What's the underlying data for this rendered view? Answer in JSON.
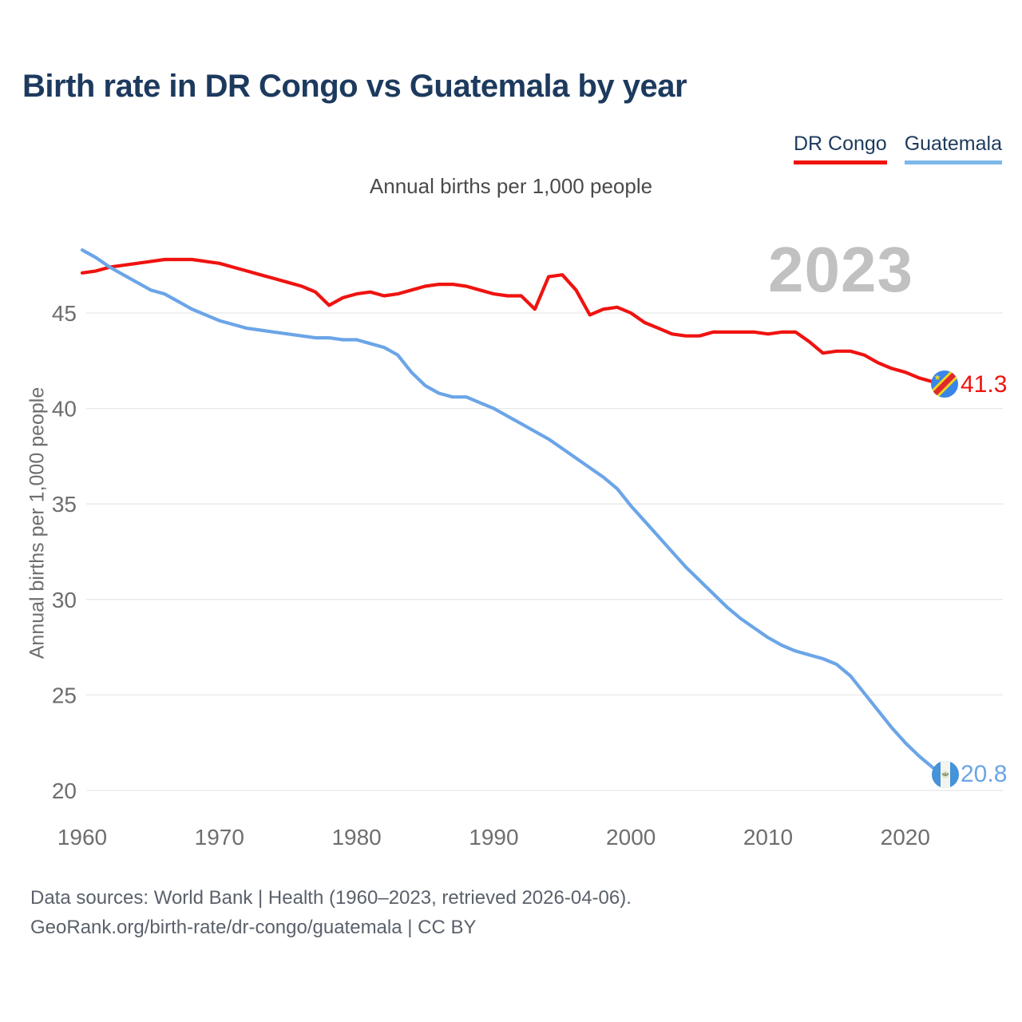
{
  "header": {
    "title": "Birth rate in DR Congo vs Guatemala by year",
    "subtitle": "Annual births per 1,000 people"
  },
  "legend": [
    {
      "label": "DR Congo",
      "color": "#ef1310"
    },
    {
      "label": "Guatemala",
      "color": "#7db8e8"
    }
  ],
  "watermark": "2023",
  "end_labels": {
    "dr_congo": "41.3",
    "guatemala": "20.8"
  },
  "footer": {
    "line1": "Data sources: World Bank | Health (1960–2023, retrieved 2026-04-06).",
    "line2": "GeoRank.org/birth-rate/dr-congo/guatemala | CC BY"
  },
  "chart_data": {
    "type": "line",
    "title": "Birth rate in DR Congo vs Guatemala by year",
    "xlabel": "",
    "ylabel": "Annual births per 1,000 people",
    "x_start": 1960,
    "x_end": 2023,
    "xticks": [
      1960,
      1970,
      1980,
      1990,
      2000,
      2010,
      2020
    ],
    "yticks": [
      45,
      40,
      35,
      30,
      25,
      20
    ],
    "ylim": [
      18.5,
      49.0
    ],
    "grid": "horizontal",
    "legend_position": "top-right",
    "colors": {
      "grid": "#e7e7e7",
      "tick_text": "#6e6e6e"
    },
    "series": [
      {
        "name": "DR Congo",
        "color": "#ef1310",
        "end_value": 41.3,
        "values": [
          47.1,
          47.2,
          47.4,
          47.5,
          47.6,
          47.7,
          47.8,
          47.8,
          47.8,
          47.7,
          47.6,
          47.4,
          47.2,
          47.0,
          46.8,
          46.6,
          46.4,
          46.1,
          45.4,
          45.8,
          46.0,
          46.1,
          45.9,
          46.0,
          46.2,
          46.4,
          46.5,
          46.5,
          46.4,
          46.2,
          46.0,
          45.9,
          45.9,
          45.2,
          46.9,
          47.0,
          46.2,
          44.9,
          45.2,
          45.3,
          45.0,
          44.5,
          44.2,
          43.9,
          43.8,
          43.8,
          44.0,
          44.0,
          44.0,
          44.0,
          43.9,
          44.0,
          44.0,
          43.5,
          42.9,
          43.0,
          43.0,
          42.8,
          42.4,
          42.1,
          41.9,
          41.6,
          41.4,
          41.3
        ]
      },
      {
        "name": "Guatemala",
        "color": "#6ba5e7",
        "end_value": 20.8,
        "values": [
          48.3,
          47.9,
          47.4,
          47.0,
          46.6,
          46.2,
          46.0,
          45.6,
          45.2,
          44.9,
          44.6,
          44.4,
          44.2,
          44.1,
          44.0,
          43.9,
          43.8,
          43.7,
          43.7,
          43.6,
          43.6,
          43.4,
          43.2,
          42.8,
          41.9,
          41.2,
          40.8,
          40.6,
          40.6,
          40.3,
          40.0,
          39.6,
          39.2,
          38.8,
          38.4,
          37.9,
          37.4,
          36.9,
          36.4,
          35.8,
          34.9,
          34.1,
          33.3,
          32.5,
          31.7,
          31.0,
          30.3,
          29.6,
          29.0,
          28.5,
          28.0,
          27.6,
          27.3,
          27.1,
          26.9,
          26.6,
          26.0,
          25.1,
          24.2,
          23.3,
          22.5,
          21.8,
          21.2,
          20.8
        ]
      }
    ]
  }
}
